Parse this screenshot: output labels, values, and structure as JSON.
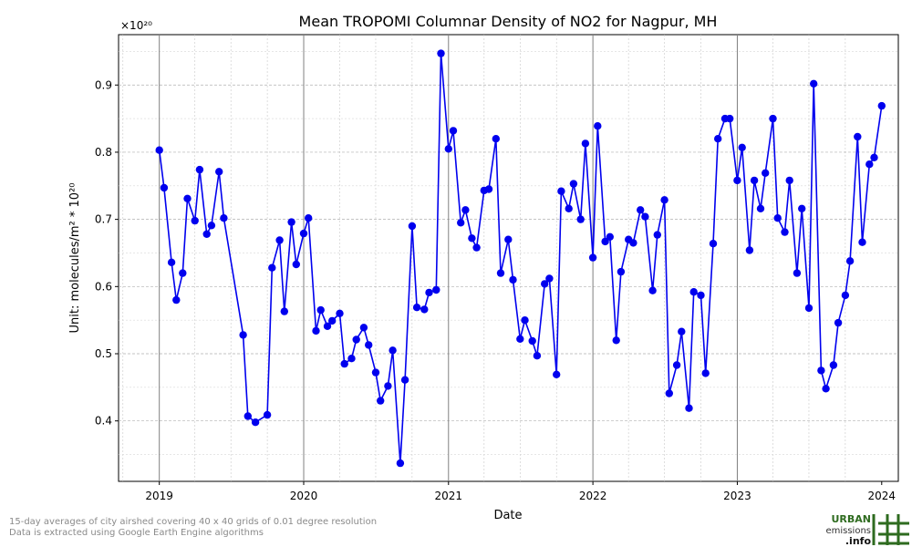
{
  "chart_data": {
    "type": "line",
    "title": "Mean TROPOMI Columnar Density of NO2 for Nagpur, MH",
    "xlabel": "Date",
    "ylabel": "Unit: molecules/m² * 10²⁰",
    "y_multiplier_label": "×10²⁰",
    "xlim": [
      "2018-09-20",
      "2024-02-12"
    ],
    "ylim": [
      0.31,
      0.975
    ],
    "x_ticks": [
      {
        "date": "2019-01-01",
        "label": "2019"
      },
      {
        "date": "2020-01-01",
        "label": "2020"
      },
      {
        "date": "2021-01-01",
        "label": "2021"
      },
      {
        "date": "2022-01-01",
        "label": "2022"
      },
      {
        "date": "2023-01-01",
        "label": "2023"
      },
      {
        "date": "2024-01-01",
        "label": "2024"
      }
    ],
    "y_ticks": [
      0.4,
      0.5,
      0.6,
      0.7,
      0.8,
      0.9
    ],
    "y_tick_labels": [
      "0.4",
      "0.5",
      "0.6",
      "0.7",
      "0.8",
      "0.9"
    ],
    "grid": true,
    "color": "#0000ee",
    "series": [
      {
        "name": "",
        "points": [
          {
            "x": "2019-01-01",
            "y": 0.803
          },
          {
            "x": "2019-01-13",
            "y": 0.747
          },
          {
            "x": "2019-02-01",
            "y": 0.636
          },
          {
            "x": "2019-02-13",
            "y": 0.58
          },
          {
            "x": "2019-03-01",
            "y": 0.62
          },
          {
            "x": "2019-03-13",
            "y": 0.731
          },
          {
            "x": "2019-04-01",
            "y": 0.698
          },
          {
            "x": "2019-04-13",
            "y": 0.774
          },
          {
            "x": "2019-05-01",
            "y": 0.678
          },
          {
            "x": "2019-05-13",
            "y": 0.691
          },
          {
            "x": "2019-06-01",
            "y": 0.771
          },
          {
            "x": "2019-06-13",
            "y": 0.702
          },
          {
            "x": "2019-08-01",
            "y": 0.528
          },
          {
            "x": "2019-08-13",
            "y": 0.407
          },
          {
            "x": "2019-09-01",
            "y": 0.398
          },
          {
            "x": "2019-10-01",
            "y": 0.409
          },
          {
            "x": "2019-10-13",
            "y": 0.628
          },
          {
            "x": "2019-11-01",
            "y": 0.669
          },
          {
            "x": "2019-11-13",
            "y": 0.563
          },
          {
            "x": "2019-12-01",
            "y": 0.696
          },
          {
            "x": "2019-12-13",
            "y": 0.633
          },
          {
            "x": "2020-01-01",
            "y": 0.679
          },
          {
            "x": "2020-01-13",
            "y": 0.702
          },
          {
            "x": "2020-02-01",
            "y": 0.534
          },
          {
            "x": "2020-02-13",
            "y": 0.565
          },
          {
            "x": "2020-03-01",
            "y": 0.541
          },
          {
            "x": "2020-03-13",
            "y": 0.549
          },
          {
            "x": "2020-04-01",
            "y": 0.56
          },
          {
            "x": "2020-04-13",
            "y": 0.485
          },
          {
            "x": "2020-05-01",
            "y": 0.493
          },
          {
            "x": "2020-05-13",
            "y": 0.521
          },
          {
            "x": "2020-06-01",
            "y": 0.539
          },
          {
            "x": "2020-06-13",
            "y": 0.513
          },
          {
            "x": "2020-07-01",
            "y": 0.472
          },
          {
            "x": "2020-07-13",
            "y": 0.43
          },
          {
            "x": "2020-08-01",
            "y": 0.452
          },
          {
            "x": "2020-08-13",
            "y": 0.505
          },
          {
            "x": "2020-09-01",
            "y": 0.337
          },
          {
            "x": "2020-09-13",
            "y": 0.461
          },
          {
            "x": "2020-10-01",
            "y": 0.69
          },
          {
            "x": "2020-10-13",
            "y": 0.569
          },
          {
            "x": "2020-11-01",
            "y": 0.566
          },
          {
            "x": "2020-11-13",
            "y": 0.591
          },
          {
            "x": "2020-12-01",
            "y": 0.595
          },
          {
            "x": "2020-12-13",
            "y": 0.947
          },
          {
            "x": "2021-01-01",
            "y": 0.805
          },
          {
            "x": "2021-01-13",
            "y": 0.832
          },
          {
            "x": "2021-02-01",
            "y": 0.695
          },
          {
            "x": "2021-02-13",
            "y": 0.714
          },
          {
            "x": "2021-03-01",
            "y": 0.672
          },
          {
            "x": "2021-03-13",
            "y": 0.658
          },
          {
            "x": "2021-04-01",
            "y": 0.743
          },
          {
            "x": "2021-04-13",
            "y": 0.745
          },
          {
            "x": "2021-05-01",
            "y": 0.82
          },
          {
            "x": "2021-05-13",
            "y": 0.62
          },
          {
            "x": "2021-06-01",
            "y": 0.67
          },
          {
            "x": "2021-06-13",
            "y": 0.61
          },
          {
            "x": "2021-07-01",
            "y": 0.522
          },
          {
            "x": "2021-07-13",
            "y": 0.55
          },
          {
            "x": "2021-08-01",
            "y": 0.519
          },
          {
            "x": "2021-08-13",
            "y": 0.497
          },
          {
            "x": "2021-09-01",
            "y": 0.604
          },
          {
            "x": "2021-09-13",
            "y": 0.612
          },
          {
            "x": "2021-10-01",
            "y": 0.469
          },
          {
            "x": "2021-10-13",
            "y": 0.742
          },
          {
            "x": "2021-11-01",
            "y": 0.716
          },
          {
            "x": "2021-11-13",
            "y": 0.753
          },
          {
            "x": "2021-12-01",
            "y": 0.7
          },
          {
            "x": "2021-12-13",
            "y": 0.813
          },
          {
            "x": "2022-01-01",
            "y": 0.643
          },
          {
            "x": "2022-01-13",
            "y": 0.839
          },
          {
            "x": "2022-02-01",
            "y": 0.667
          },
          {
            "x": "2022-02-13",
            "y": 0.674
          },
          {
            "x": "2022-03-01",
            "y": 0.52
          },
          {
            "x": "2022-03-13",
            "y": 0.622
          },
          {
            "x": "2022-04-01",
            "y": 0.67
          },
          {
            "x": "2022-04-13",
            "y": 0.665
          },
          {
            "x": "2022-05-01",
            "y": 0.714
          },
          {
            "x": "2022-05-13",
            "y": 0.704
          },
          {
            "x": "2022-06-01",
            "y": 0.594
          },
          {
            "x": "2022-06-13",
            "y": 0.677
          },
          {
            "x": "2022-07-01",
            "y": 0.729
          },
          {
            "x": "2022-07-13",
            "y": 0.441
          },
          {
            "x": "2022-08-01",
            "y": 0.483
          },
          {
            "x": "2022-08-13",
            "y": 0.533
          },
          {
            "x": "2022-09-01",
            "y": 0.419
          },
          {
            "x": "2022-09-13",
            "y": 0.592
          },
          {
            "x": "2022-10-01",
            "y": 0.587
          },
          {
            "x": "2022-10-13",
            "y": 0.471
          },
          {
            "x": "2022-11-01",
            "y": 0.664
          },
          {
            "x": "2022-11-13",
            "y": 0.82
          },
          {
            "x": "2022-12-01",
            "y": 0.85
          },
          {
            "x": "2022-12-13",
            "y": 0.85
          },
          {
            "x": "2023-01-01",
            "y": 0.758
          },
          {
            "x": "2023-01-13",
            "y": 0.807
          },
          {
            "x": "2023-02-01",
            "y": 0.654
          },
          {
            "x": "2023-02-13",
            "y": 0.758
          },
          {
            "x": "2023-03-01",
            "y": 0.716
          },
          {
            "x": "2023-03-13",
            "y": 0.769
          },
          {
            "x": "2023-04-01",
            "y": 0.85
          },
          {
            "x": "2023-04-13",
            "y": 0.702
          },
          {
            "x": "2023-05-01",
            "y": 0.681
          },
          {
            "x": "2023-05-13",
            "y": 0.758
          },
          {
            "x": "2023-06-01",
            "y": 0.62
          },
          {
            "x": "2023-06-13",
            "y": 0.716
          },
          {
            "x": "2023-07-01",
            "y": 0.568
          },
          {
            "x": "2023-07-13",
            "y": 0.902
          },
          {
            "x": "2023-08-01",
            "y": 0.475
          },
          {
            "x": "2023-08-13",
            "y": 0.448
          },
          {
            "x": "2023-09-01",
            "y": 0.483
          },
          {
            "x": "2023-09-13",
            "y": 0.546
          },
          {
            "x": "2023-10-01",
            "y": 0.587
          },
          {
            "x": "2023-10-13",
            "y": 0.638
          },
          {
            "x": "2023-11-01",
            "y": 0.823
          },
          {
            "x": "2023-11-13",
            "y": 0.666
          },
          {
            "x": "2023-12-01",
            "y": 0.782
          },
          {
            "x": "2023-12-13",
            "y": 0.792
          },
          {
            "x": "2024-01-01",
            "y": 0.869
          }
        ]
      }
    ]
  },
  "footnotes": {
    "line1": "15-day averages of city airshed covering 40 x 40 grids of 0.01 degree resolution",
    "line2": "Data is extracted using Google Earth Engine algorithms"
  },
  "logo": {
    "word1": "URBAN",
    "word2": "emissions",
    "word3": ".info",
    "color": "#2e6b1f"
  }
}
